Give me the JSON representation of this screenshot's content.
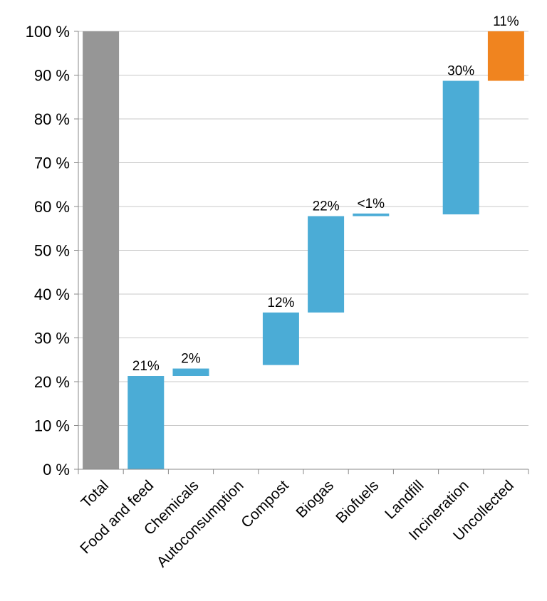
{
  "chart_data": {
    "type": "bar",
    "subtype": "waterfall",
    "title": "",
    "xlabel": "",
    "ylabel": "",
    "ylim": [
      0,
      100
    ],
    "y_ticks": [
      0,
      10,
      20,
      30,
      40,
      50,
      60,
      70,
      80,
      90,
      100
    ],
    "y_tick_labels": [
      "0 %",
      "10 %",
      "20 %",
      "30 %",
      "40 %",
      "50 %",
      "60 %",
      "70 %",
      "80 %",
      "90 %",
      "100 %"
    ],
    "grid": true,
    "legend": "none",
    "colors": {
      "total": "#969696",
      "component": "#4bacd6",
      "uncollected": "#f0841f",
      "grid": "#c8c8c8",
      "axis": "#888888"
    },
    "bars": [
      {
        "category": "Total",
        "bottom": 0,
        "top": 100,
        "label": "",
        "kind": "total"
      },
      {
        "category": "Food and feed",
        "bottom": 0,
        "top": 21.3,
        "label": "21%",
        "kind": "component"
      },
      {
        "category": "Chemicals",
        "bottom": 21.3,
        "top": 23,
        "label": "2%",
        "kind": "component"
      },
      {
        "category": "Autoconsumption",
        "bottom": null,
        "top": null,
        "label": "",
        "kind": "component"
      },
      {
        "category": "Compost",
        "bottom": 23.8,
        "top": 35.8,
        "label": "12%",
        "kind": "component"
      },
      {
        "category": "Biogas",
        "bottom": 35.8,
        "top": 57.8,
        "label": "22%",
        "kind": "component"
      },
      {
        "category": "Biofuels",
        "bottom": 57.8,
        "top": 58.4,
        "label": "<1%",
        "kind": "component"
      },
      {
        "category": "Landfill",
        "bottom": null,
        "top": null,
        "label": "",
        "kind": "component"
      },
      {
        "category": "Incineration",
        "bottom": 58.2,
        "top": 88.7,
        "label": "30%",
        "kind": "component"
      },
      {
        "category": "Uncollected",
        "bottom": 88.7,
        "top": 100,
        "label": "11%",
        "kind": "uncollected"
      }
    ]
  }
}
